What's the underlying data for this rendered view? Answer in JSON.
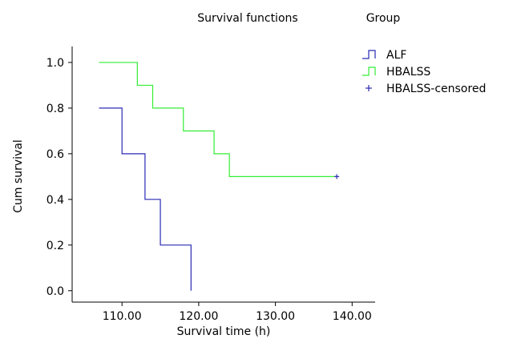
{
  "chart_data": {
    "type": "line",
    "step": true,
    "title": "Survival functions",
    "xlabel": "Survival time (h)",
    "ylabel": "Cum survival",
    "xlim": [
      103.5,
      143
    ],
    "ylim": [
      -0.05,
      1.07
    ],
    "x_ticks": [
      110,
      120,
      130,
      140
    ],
    "x_tick_labels": [
      "110.00",
      "120.00",
      "130.00",
      "140.00"
    ],
    "y_ticks": [
      0,
      0.2,
      0.4,
      0.6,
      0.8,
      1.0
    ],
    "y_tick_labels": [
      "0.0",
      "0.2",
      "0.4",
      "0.6",
      "0.8",
      "1.0"
    ],
    "grid": false,
    "legend": {
      "title": "Group",
      "position": "top-right",
      "entries": [
        {
          "label": "ALF",
          "symbol": "step",
          "color": "#2a2ab5"
        },
        {
          "label": "HBALSS",
          "symbol": "step",
          "color": "#33ee33"
        },
        {
          "label": "HBALSS-censored",
          "symbol": "plus",
          "color": "#2a2ab5"
        }
      ]
    },
    "series": [
      {
        "name": "ALF",
        "color": "#2a2ab5",
        "x": [
          107,
          110,
          113,
          115,
          119
        ],
        "y": [
          0.8,
          0.6,
          0.4,
          0.2,
          0.0
        ],
        "censored": []
      },
      {
        "name": "HBALSS",
        "color": "#33ee33",
        "x": [
          107,
          112,
          114,
          118,
          122,
          124,
          138
        ],
        "y": [
          1.0,
          0.9,
          0.8,
          0.7,
          0.6,
          0.5,
          0.5
        ],
        "censored": [
          {
            "x": 138,
            "y": 0.5
          }
        ]
      }
    ]
  }
}
